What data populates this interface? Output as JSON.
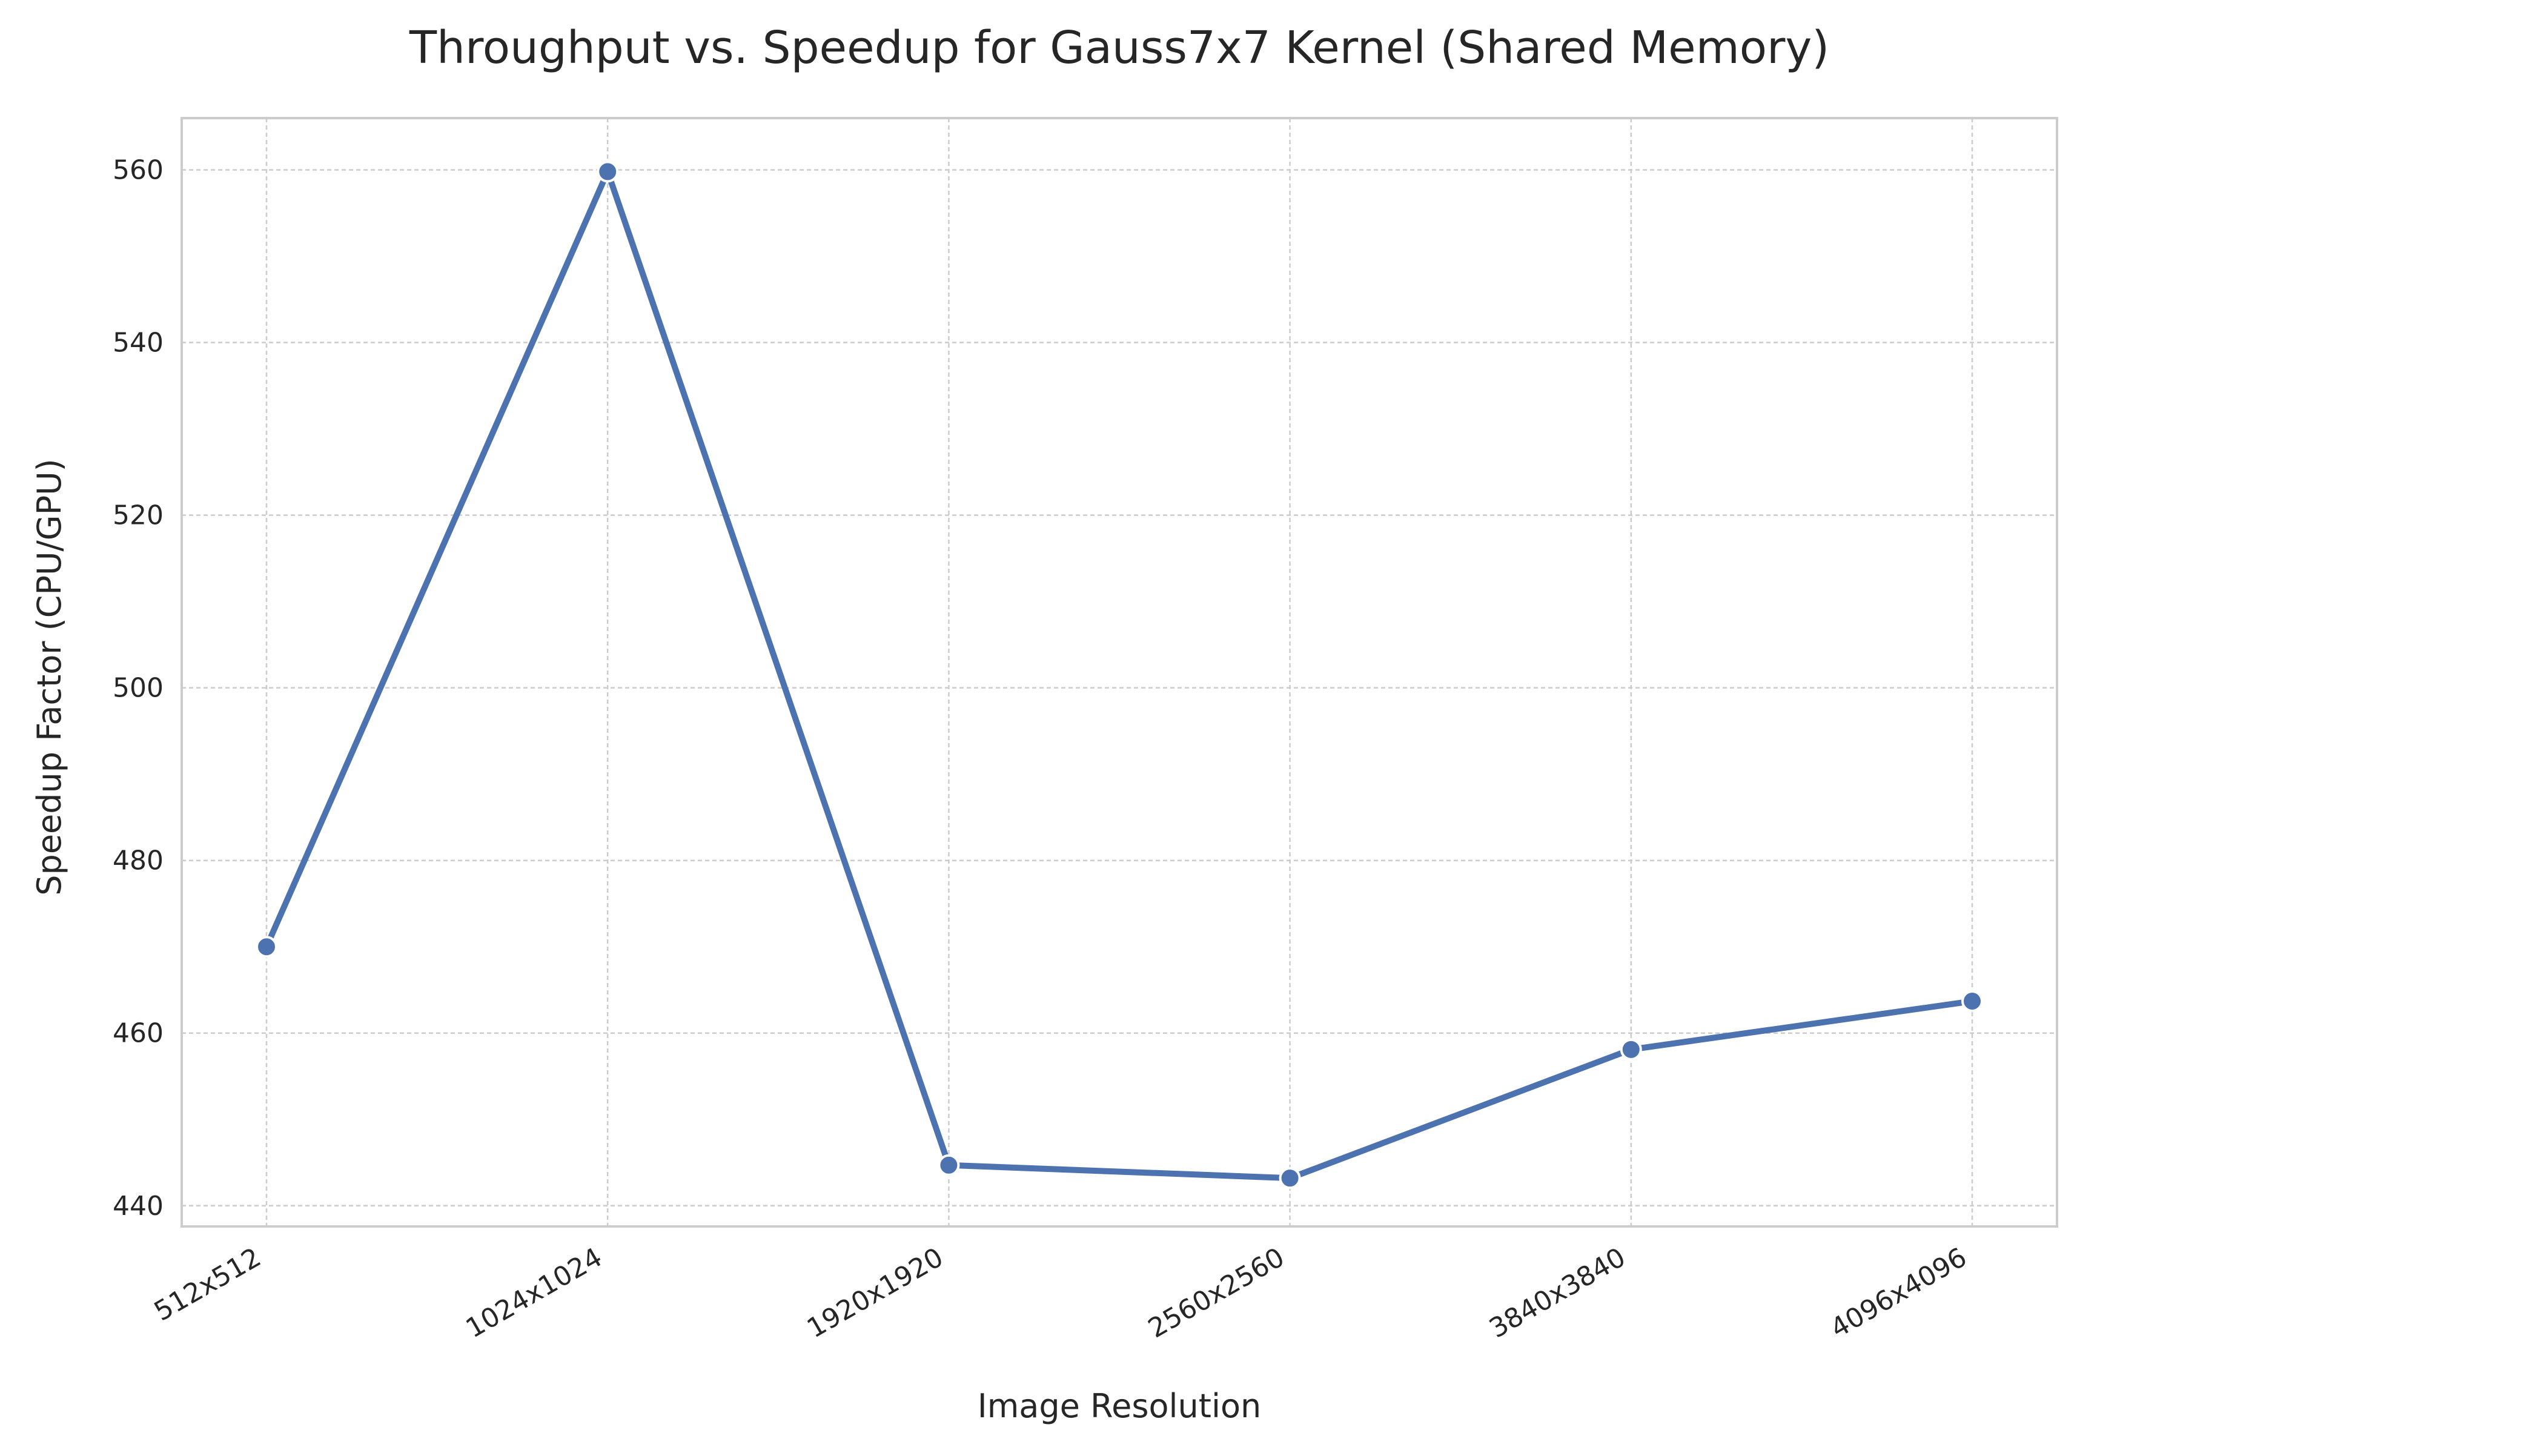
{
  "chart_data": {
    "type": "line",
    "title": "Throughput vs. Speedup for Gauss7x7 Kernel (Shared Memory)",
    "xlabel": "Image Resolution",
    "ylabel": "Speedup Factor (CPU/GPU)",
    "categories": [
      "512x512",
      "1024x1024",
      "1920x1920",
      "2560x2560",
      "3840x3840",
      "4096x4096"
    ],
    "series": [
      {
        "values": [
          470.0,
          559.8,
          444.7,
          443.2,
          458.1,
          463.7
        ]
      }
    ],
    "ylim": [
      437.6,
      566.0
    ],
    "yticks": [
      440,
      460,
      480,
      500,
      520,
      540,
      560
    ],
    "grid": true,
    "legend": "none",
    "colors": {
      "line": "#4c72b0",
      "marker_edge": "#ffffff",
      "grid": "#cccccc",
      "frame": "#cccccc",
      "text": "#262626"
    }
  }
}
